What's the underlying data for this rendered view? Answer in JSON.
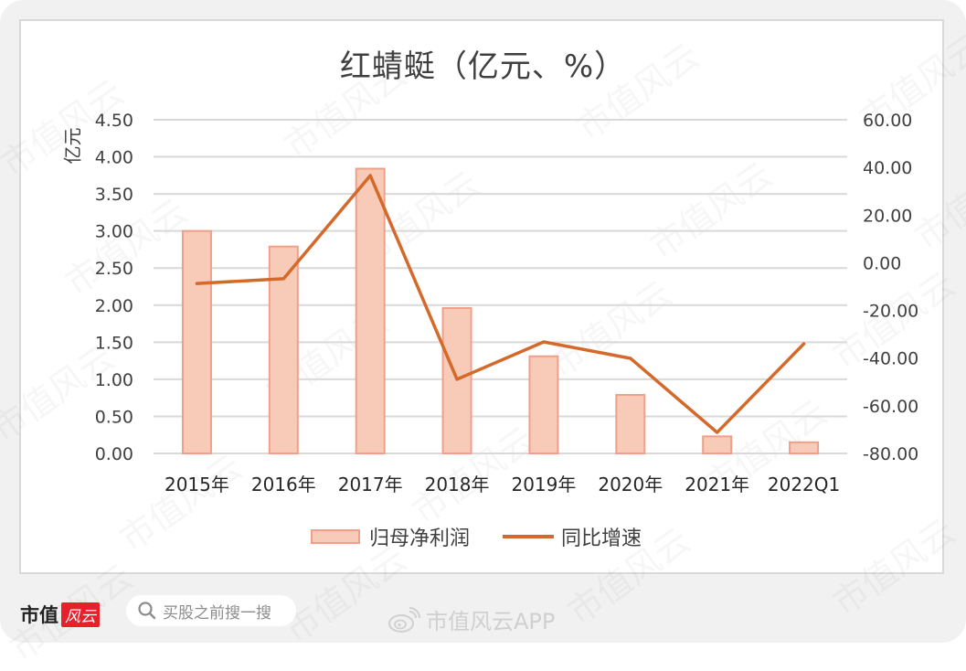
{
  "chart_data": {
    "type": "bar+line",
    "title": "红蜻蜓（亿元、%）",
    "categories": [
      "2015年",
      "2016年",
      "2017年",
      "2018年",
      "2019年",
      "2020年",
      "2021年",
      "2022Q1"
    ],
    "series": [
      {
        "name": "归母净利润",
        "type": "bar",
        "axis": "left",
        "values": [
          3.0,
          2.79,
          3.84,
          1.96,
          1.31,
          0.79,
          0.23,
          0.15
        ]
      },
      {
        "name": "同比增速",
        "type": "line",
        "axis": "right",
        "values": [
          -8.7,
          -6.7,
          36.6,
          -48.9,
          -33.2,
          -40.1,
          -71.2,
          -34.0
        ]
      }
    ],
    "xlabel": "",
    "ylabel": "亿元",
    "ylabel_right": "%",
    "ylim": [
      0,
      4.5
    ],
    "ylim_right": [
      -80,
      60
    ],
    "yticks": [
      "4.50",
      "4.00",
      "3.50",
      "3.00",
      "2.50",
      "2.00",
      "1.50",
      "1.00",
      "0.50",
      "0.00"
    ],
    "yticks_right": [
      "60.00",
      "40.00",
      "20.00",
      "0.00",
      "-20.00",
      "-40.00",
      "-60.00",
      "-80.00"
    ],
    "grid": true,
    "legend_position": "bottom",
    "colors": {
      "bar_fill": "#f8cbb8",
      "bar_border": "#eea08a",
      "line": "#d4692a",
      "grid": "#d9d9d9"
    }
  },
  "title": "红蜻蜓（亿元、%）",
  "y_axis_label": "亿元",
  "legend": {
    "bar_label": "归母净利润",
    "line_label": "同比增速"
  },
  "footer": {
    "logo_text": "市值",
    "logo_badge": "风云",
    "search_placeholder": "买股之前搜一搜",
    "weibo_text": "市值风云APP"
  },
  "watermark": "市值风云"
}
